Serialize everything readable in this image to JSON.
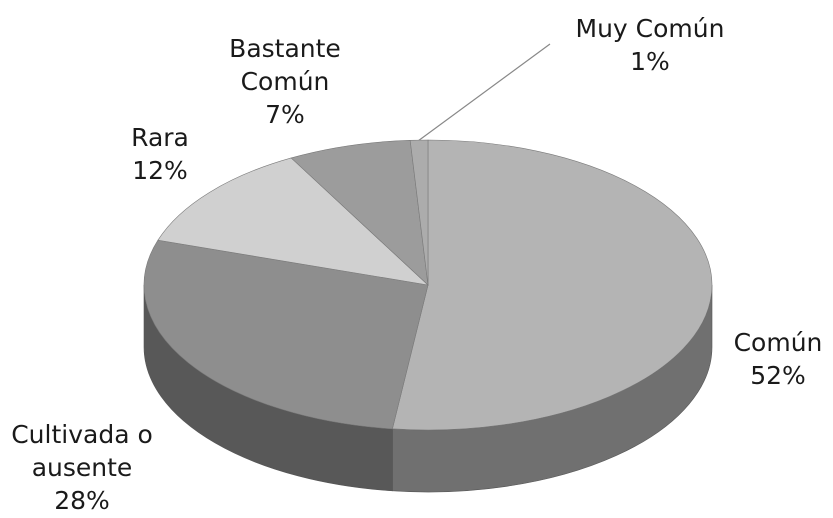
{
  "chart_data": {
    "type": "pie",
    "categories": [
      "Común",
      "Cultivada o ausente",
      "Rara",
      "Bastante Común",
      "Muy Común"
    ],
    "values": [
      52,
      28,
      12,
      7,
      1
    ],
    "value_labels": [
      "52%",
      "28%",
      "12%",
      "7%",
      "1%"
    ],
    "colors": [
      "#b4b4b4",
      "#8e8e8e",
      "#d0d0d0",
      "#9c9c9c",
      "#acacac"
    ]
  }
}
